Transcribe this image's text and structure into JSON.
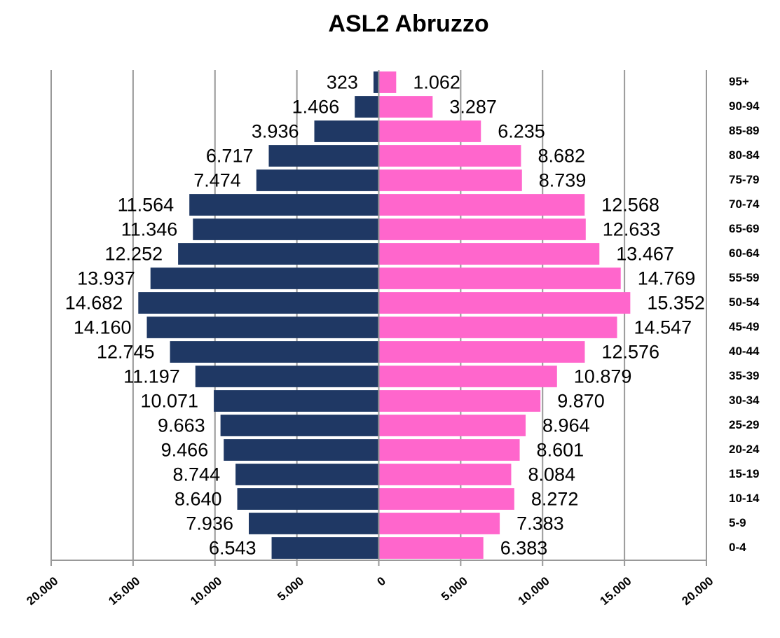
{
  "chart_data": {
    "type": "pyramid",
    "title": "ASL2 Abruzzo",
    "categories": [
      "0-4",
      "5-9",
      "10-14",
      "15-19",
      "20-24",
      "25-29",
      "30-34",
      "35-39",
      "40-44",
      "45-49",
      "50-54",
      "55-59",
      "60-64",
      "65-69",
      "70-74",
      "75-79",
      "80-84",
      "85-89",
      "90-94",
      "95+"
    ],
    "series": [
      {
        "color": "#1f3864",
        "values": [
          -6543,
          -7936,
          -8640,
          -8744,
          -9466,
          -9663,
          -10071,
          -11197,
          -12745,
          -14160,
          -14682,
          -13937,
          -12252,
          -11346,
          -11564,
          -7474,
          -6717,
          -3936,
          -1466,
          -323
        ],
        "value_labels": [
          "6.543",
          "7.936",
          "8.640",
          "8.744",
          "9.466",
          "9.663",
          "10.071",
          "11.197",
          "12.745",
          "14.160",
          "14.682",
          "13.937",
          "12.252",
          "11.346",
          "11.564",
          "7.474",
          "6.717",
          "3.936",
          "1.466",
          "323"
        ]
      },
      {
        "color": "#ff66cc",
        "values": [
          6383,
          7383,
          8272,
          8084,
          8601,
          8964,
          9870,
          10879,
          12576,
          14547,
          15352,
          14769,
          13467,
          12633,
          12568,
          8739,
          8682,
          6235,
          3287,
          1062
        ],
        "value_labels": [
          "6.383",
          "7.383",
          "8.272",
          "8.084",
          "8.601",
          "8.964",
          "9.870",
          "10.879",
          "12.576",
          "14.547",
          "15.352",
          "14.769",
          "13.467",
          "12.633",
          "12.568",
          "8.739",
          "8.682",
          "6.235",
          "3.287",
          "1.062"
        ]
      }
    ],
    "xlim": [
      -20000,
      20000
    ],
    "xticks": [
      {
        "value": -20000,
        "label": "20.000"
      },
      {
        "value": -15000,
        "label": "15.000"
      },
      {
        "value": -10000,
        "label": "10.000"
      },
      {
        "value": -5000,
        "label": "5.000"
      },
      0,
      {
        "value": 5000,
        "label": "5.000"
      },
      {
        "value": 10000,
        "label": "10.000"
      },
      {
        "value": 15000,
        "label": "15.000"
      },
      {
        "value": 20000,
        "label": "20.000"
      }
    ],
    "grid": true
  }
}
